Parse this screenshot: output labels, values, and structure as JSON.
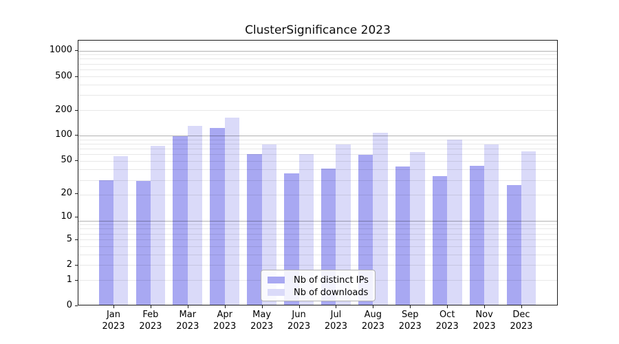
{
  "figure": {
    "title": "ClusterSignificance 2023"
  },
  "chart_data": {
    "type": "bar",
    "title": "ClusterSignificance 2023",
    "x_categories": [
      "Jan",
      "Feb",
      "Mar",
      "Apr",
      "May",
      "Jun",
      "Jul",
      "Aug",
      "Sep",
      "Oct",
      "Nov",
      "Dec"
    ],
    "x_year": "2023",
    "y_scale": "log1p (symlog-like: 0 then logarithmic decades)",
    "y_ticks": [
      0,
      1,
      2,
      5,
      10,
      20,
      50,
      100,
      200,
      500,
      1000
    ],
    "ylim": [
      0,
      1200
    ],
    "grid": "horizontal major and minor gridlines, drawn over bars",
    "legend_position": "lower center, inside plot",
    "series": [
      {
        "name": "Nb of distinct IPs",
        "color": "#a8a8f2",
        "values": [
          29,
          28,
          97,
          121,
          59,
          35,
          40,
          58,
          42,
          32,
          43,
          25
        ]
      },
      {
        "name": "Nb of downloads",
        "color": "#dadaf9",
        "values": [
          56,
          74,
          128,
          162,
          77,
          60,
          78,
          106,
          63,
          88,
          77,
          64
        ]
      }
    ]
  },
  "colors": {
    "background": "#ffffff",
    "spine": "#1a1a1a",
    "bar_distinct_ips": "#a8a8f2",
    "bar_downloads": "#dadaf9",
    "grid_major": "#b3b3b3",
    "grid_minor": "#e8e8e8",
    "text": "#000000"
  }
}
